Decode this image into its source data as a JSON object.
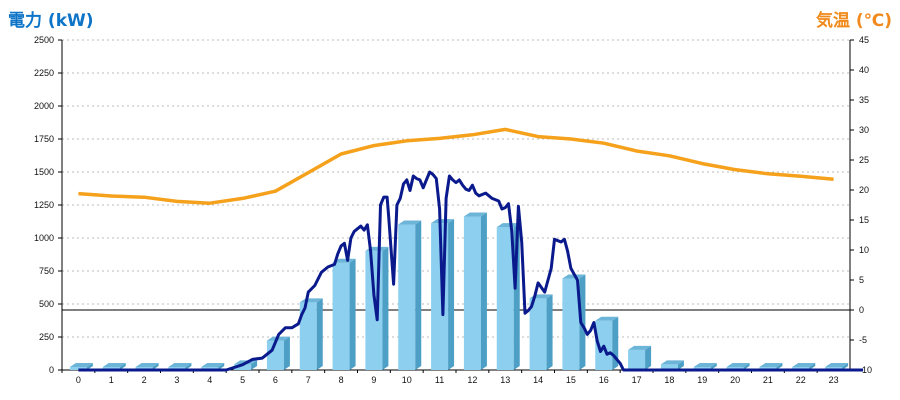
{
  "chart_data": {
    "type": "bar+line",
    "left_axis_title": "電力 (kW)",
    "right_axis_title": "気温 (℃)",
    "categories": [
      "0",
      "1",
      "2",
      "3",
      "4",
      "5",
      "6",
      "7",
      "8",
      "9",
      "10",
      "11",
      "12",
      "13",
      "14",
      "15",
      "16",
      "17",
      "18",
      "19",
      "20",
      "21",
      "22",
      "23"
    ],
    "left_ticks": [
      "0",
      "250",
      "500",
      "750",
      "1000",
      "1250",
      "1500",
      "1750",
      "2000",
      "2250",
      "2500"
    ],
    "right_ticks": [
      "-10",
      "-5",
      "0",
      "5",
      "10",
      "15",
      "20",
      "25",
      "30",
      "35",
      "40",
      "45"
    ],
    "ylim_left": [
      0,
      2500
    ],
    "ylim_right": [
      -10,
      45
    ],
    "grid": true,
    "colors": {
      "bar": "#8ccfee",
      "power_line": "#0a1a8c",
      "temp_line": "#f5a11c",
      "axis": "#000000",
      "grid": "#bbbbbb"
    },
    "hourly_power_bars": [
      0,
      0,
      0,
      0,
      0,
      20,
      200,
      490,
      790,
      880,
      1080,
      1090,
      1140,
      1060,
      520,
      670,
      350,
      130,
      20,
      0,
      0,
      0,
      0,
      0
    ],
    "temperature": {
      "x": [
        0,
        1,
        2,
        3,
        4,
        5,
        6,
        7,
        8,
        9,
        10,
        11,
        12,
        13,
        14,
        15,
        16,
        17,
        18,
        19,
        20,
        21,
        22,
        23
      ],
      "values": [
        19.4,
        19.0,
        18.8,
        18.1,
        17.8,
        18.6,
        19.8,
        22.9,
        26.0,
        27.4,
        28.2,
        28.6,
        29.2,
        30.1,
        28.9,
        28.5,
        27.8,
        26.5,
        25.7,
        24.4,
        23.4,
        22.7,
        22.3,
        21.8
      ]
    },
    "power_line": {
      "x": [
        0,
        4.5,
        5,
        5.3,
        5.6,
        5.9,
        6.1,
        6.3,
        6.5,
        6.7,
        6.8,
        6.9,
        7.0,
        7.2,
        7.4,
        7.6,
        7.8,
        7.9,
        8.0,
        8.1,
        8.2,
        8.3,
        8.4,
        8.6,
        8.7,
        8.8,
        8.9,
        9.0,
        9.1,
        9.2,
        9.3,
        9.4,
        9.45,
        9.6,
        9.7,
        9.8,
        9.9,
        10.0,
        10.1,
        10.2,
        10.3,
        10.4,
        10.5,
        10.6,
        10.7,
        10.8,
        10.9,
        11.0,
        11.1,
        11.2,
        11.3,
        11.4,
        11.5,
        11.6,
        11.7,
        11.8,
        11.9,
        12.0,
        12.1,
        12.2,
        12.4,
        12.6,
        12.8,
        12.9,
        13.0,
        13.1,
        13.2,
        13.3,
        13.4,
        13.5,
        13.6,
        13.7,
        13.8,
        13.9,
        14.0,
        14.2,
        14.4,
        14.5,
        14.7,
        14.8,
        14.9,
        15.0,
        15.2,
        15.3,
        15.4,
        15.5,
        15.6,
        15.7,
        15.8,
        15.9,
        16.0,
        16.1,
        16.2,
        16.3,
        16.5,
        16.6,
        16.8,
        16.9,
        17.0,
        17.2,
        17.4,
        17.6,
        17.7,
        18.0,
        23.9
      ],
      "values": [
        0,
        0,
        40,
        80,
        90,
        150,
        270,
        320,
        320,
        350,
        420,
        470,
        590,
        640,
        740,
        780,
        800,
        880,
        940,
        960,
        830,
        1000,
        1050,
        1090,
        1060,
        1100,
        900,
        570,
        380,
        1250,
        1310,
        1310,
        1160,
        650,
        1250,
        1300,
        1410,
        1440,
        1360,
        1470,
        1450,
        1440,
        1380,
        1440,
        1500,
        1480,
        1450,
        1220,
        420,
        1300,
        1470,
        1440,
        1420,
        1440,
        1400,
        1370,
        1360,
        1400,
        1340,
        1320,
        1340,
        1300,
        1280,
        1220,
        1230,
        1260,
        1050,
        620,
        1240,
        970,
        430,
        450,
        480,
        560,
        660,
        590,
        770,
        990,
        970,
        990,
        900,
        770,
        680,
        360,
        320,
        270,
        300,
        360,
        220,
        140,
        180,
        120,
        130,
        110,
        50,
        0,
        0,
        0,
        0,
        0,
        0,
        0,
        0,
        0,
        0
      ]
    }
  }
}
